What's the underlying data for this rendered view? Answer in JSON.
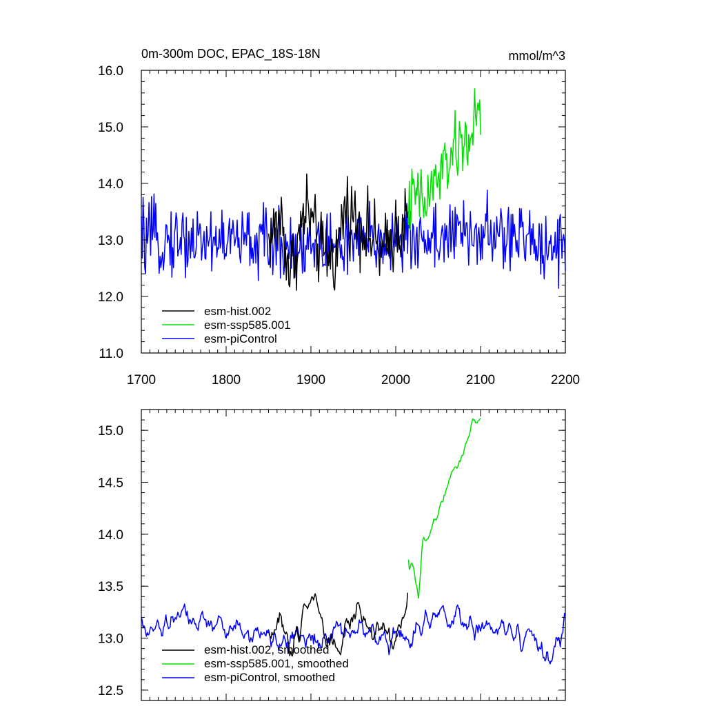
{
  "chart_data": [
    {
      "type": "line",
      "title": "0m-300m DOC, EPAC_18S-18N",
      "units": "mmol/m^3",
      "xlim": [
        1700,
        2200
      ],
      "ylim": [
        11.0,
        16.0
      ],
      "x_ticks": [
        "1700",
        "1800",
        "1900",
        "2000",
        "2100",
        "2200"
      ],
      "y_ticks": [
        "11.0",
        "12.0",
        "13.0",
        "14.0",
        "15.0",
        "16.0"
      ],
      "legend_position": "bottom-left",
      "series": [
        {
          "name": "esm-hist.002",
          "color": "#000000",
          "x_start": 1850,
          "x_end": 2014,
          "mean": 13.0,
          "amplitude": 0.45,
          "anchors": [
            [
              1850,
              13.0
            ],
            [
              1865,
              13.4
            ],
            [
              1875,
              12.4
            ],
            [
              1895,
              13.6
            ],
            [
              1910,
              12.8
            ],
            [
              1930,
              12.7
            ],
            [
              1940,
              13.6
            ],
            [
              1965,
              13.2
            ],
            [
              1985,
              12.7
            ],
            [
              2000,
              13.2
            ],
            [
              2014,
              13.3
            ]
          ]
        },
        {
          "name": "esm-ssp585.001",
          "color": "#00e000",
          "x_start": 2015,
          "x_end": 2100,
          "mean": 13.0,
          "amplitude": 0.4,
          "anchors": [
            [
              2015,
              13.6
            ],
            [
              2025,
              13.8
            ],
            [
              2035,
              13.6
            ],
            [
              2045,
              14.0
            ],
            [
              2055,
              14.2
            ],
            [
              2065,
              14.5
            ],
            [
              2075,
              14.6
            ],
            [
              2085,
              14.8
            ],
            [
              2095,
              15.1
            ],
            [
              2100,
              15.2
            ]
          ]
        },
        {
          "name": "esm-piControl",
          "color": "#0000ff",
          "x_start": 1700,
          "x_end": 2200,
          "mean": 13.0,
          "amplitude": 0.42,
          "anchors": [
            [
              1700,
              13.0
            ],
            [
              1800,
              13.0
            ],
            [
              1900,
              12.9
            ],
            [
              2000,
              13.0
            ],
            [
              2100,
              13.1
            ],
            [
              2200,
              12.9
            ]
          ]
        }
      ]
    },
    {
      "type": "line",
      "title": "",
      "units": "",
      "xlim": [
        1700,
        2200
      ],
      "ylim": [
        12.4,
        15.2
      ],
      "x_ticks": [],
      "y_ticks": [
        "12.5",
        "13.0",
        "13.5",
        "14.0",
        "14.5",
        "15.0"
      ],
      "legend_position": "bottom-left",
      "series": [
        {
          "name": "esm-hist.002, smoothed",
          "color": "#000000",
          "x_start": 1850,
          "x_end": 2014,
          "mean": 13.0,
          "amplitude": 0.12,
          "anchors": [
            [
              1850,
              13.0
            ],
            [
              1865,
              13.2
            ],
            [
              1875,
              12.8
            ],
            [
              1890,
              13.3
            ],
            [
              1905,
              13.4
            ],
            [
              1915,
              13.1
            ],
            [
              1930,
              12.9
            ],
            [
              1945,
              13.1
            ],
            [
              1960,
              13.2
            ],
            [
              1975,
              13.0
            ],
            [
              1985,
              13.1
            ],
            [
              2000,
              12.9
            ],
            [
              2014,
              13.45
            ]
          ]
        },
        {
          "name": "esm-ssp585.001, smoothed",
          "color": "#00e000",
          "x_start": 2015,
          "x_end": 2100,
          "mean": 13.0,
          "amplitude": 0.05,
          "anchors": [
            [
              2015,
              13.7
            ],
            [
              2020,
              13.75
            ],
            [
              2027,
              13.4
            ],
            [
              2032,
              13.9
            ],
            [
              2040,
              14.0
            ],
            [
              2050,
              14.2
            ],
            [
              2060,
              14.5
            ],
            [
              2070,
              14.65
            ],
            [
              2080,
              14.8
            ],
            [
              2090,
              15.05
            ],
            [
              2100,
              15.15
            ]
          ]
        },
        {
          "name": "esm-piControl, smoothed",
          "color": "#0000ff",
          "x_start": 1700,
          "x_end": 2200,
          "mean": 13.0,
          "amplitude": 0.12,
          "anchors": [
            [
              1700,
              13.0
            ],
            [
              1750,
              13.2
            ],
            [
              1800,
              13.1
            ],
            [
              1850,
              13.0
            ],
            [
              1900,
              13.0
            ],
            [
              1950,
              13.1
            ],
            [
              2000,
              13.0
            ],
            [
              2050,
              13.2
            ],
            [
              2100,
              13.1
            ],
            [
              2160,
              13.0
            ],
            [
              2180,
              12.75
            ],
            [
              2200,
              13.1
            ]
          ]
        }
      ]
    }
  ]
}
